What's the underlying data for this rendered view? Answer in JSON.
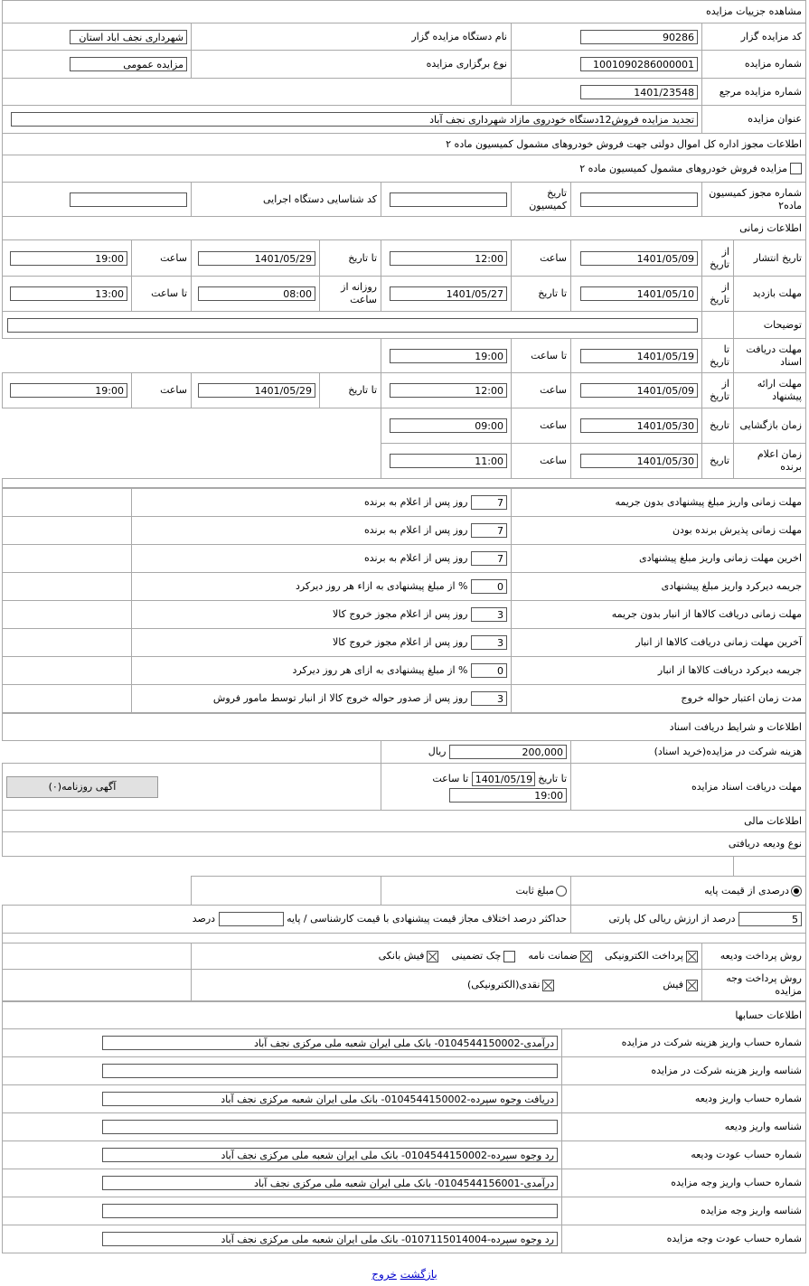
{
  "page_title": "مشاهده جزییات مزایده",
  "general": {
    "code_label": "کد مزایده گزار",
    "code_value": "90286",
    "org_label": "نام دستگاه مزایده گزار",
    "org_value": "شهرداری نجف اباد استان",
    "number_label": "شماره مزایده",
    "number_value": "1001090286000001",
    "type_label": "نوع برگزاری مزایده",
    "type_value": "مزایده عمومی",
    "ref_label": "شماره مزایده مرجع",
    "ref_value": "1401/23548",
    "title_label": "عنوان مزایده",
    "title_value": "تجدید مزایده فروش12دستگاه خودروی مازاد شهرداری نجف آباد"
  },
  "license": {
    "header": "اطلاعات مجوز اداره کل اموال دولتی جهت فروش خودروهای مشمول کمیسیون ماده ۲",
    "checkbox_label": "مزایده فروش خودروهای مشمول کمیسیون ماده ۲",
    "checkbox_checked": false,
    "permit_label": "شماره مجوز کمیسیون ماده۲",
    "permit_value": "",
    "date_label": "تاریخ کمیسیون",
    "date_value": "",
    "exec_label": "کد شناسایی دستگاه اجرایی",
    "exec_value": ""
  },
  "time": {
    "header": "اطلاعات زمانی",
    "publish": {
      "label": "تاریخ انتشار",
      "from": "از تاریخ",
      "from_date": "1401/05/09",
      "time1_label": "ساعت",
      "time1": "12:00",
      "to": "تا تاریخ",
      "to_date": "1401/05/29",
      "time2_label": "ساعت",
      "time2": "19:00"
    },
    "visit": {
      "label": "مهلت بازدید",
      "from": "از تاریخ",
      "from_date": "1401/05/10",
      "to": "تا تاریخ",
      "to_date": "1401/05/27",
      "daily_label": "روزانه از ساعت",
      "daily_from": "08:00",
      "to_time_label": "تا ساعت",
      "daily_to": "13:00"
    },
    "desc_label": "توضیحات",
    "desc_value": "",
    "docs": {
      "label": "مهلت دریافت اسناد",
      "to": "تا تاریخ",
      "date": "1401/05/19",
      "time_label": "تا ساعت",
      "time": "19:00"
    },
    "offer": {
      "label": "مهلت ارائه پیشنهاد",
      "from": "از تاریخ",
      "from_date": "1401/05/09",
      "time1_label": "ساعت",
      "time1": "12:00",
      "to": "تا تاریخ",
      "to_date": "1401/05/29",
      "time2_label": "ساعت",
      "time2": "19:00"
    },
    "opening": {
      "label": "زمان بازگشایی",
      "date_label": "تاریخ",
      "date": "1401/05/30",
      "time_label": "ساعت",
      "time": "09:00"
    },
    "winner": {
      "label": "زمان اعلام برنده",
      "date_label": "تاریخ",
      "date": "1401/05/30",
      "time_label": "ساعت",
      "time": "11:00"
    }
  },
  "deadlines": [
    {
      "label": "مهلت زمانی واریز مبلغ پیشنهادی بدون جریمه",
      "value": "7",
      "suffix": "روز پس از اعلام به برنده"
    },
    {
      "label": "مهلت زمانی پذیرش برنده بودن",
      "value": "7",
      "suffix": "روز پس از اعلام به برنده"
    },
    {
      "label": "اخرین مهلت زمانی واریز مبلغ پیشنهادی",
      "value": "7",
      "suffix": "روز پس از اعلام به برنده"
    },
    {
      "label": "جریمه دیرکرد واریز مبلغ پیشنهادی",
      "value": "0",
      "suffix": "% از مبلغ پیشنهادی به ازاء هر روز دیرکرد"
    },
    {
      "label": "مهلت زمانی دریافت کالاها از انبار بدون جریمه",
      "value": "3",
      "suffix": "روز پس از اعلام مجوز خروج کالا"
    },
    {
      "label": "آخرین مهلت زمانی دریافت کالاها از انبار",
      "value": "3",
      "suffix": "روز پس از اعلام مجوز خروج کالا"
    },
    {
      "label": "جریمه دیرکرد دریافت کالاها از انبار",
      "value": "0",
      "suffix": "% از مبلغ پیشنهادی به ازای هر روز دیرکرد"
    },
    {
      "label": "مدت زمان اعتبار حواله خروج",
      "value": "3",
      "suffix": "روز پس از صدور حواله خروج کالا از انبار توسط مامور فروش"
    }
  ],
  "docs": {
    "header": "اطلاعات و شرایط دریافت اسناد",
    "cost_label": "هزینه شرکت در مزایده(خرید اسناد)",
    "cost_value": "200,000",
    "cost_unit": "ریال",
    "deadline_label": "مهلت دریافت اسناد مزایده",
    "to_date_label": "تا تاریخ",
    "to_date": "1401/05/19",
    "to_time_label": "تا ساعت",
    "to_time": "19:00",
    "newspaper_button": "آگهی روزنامه(۰)"
  },
  "finance": {
    "header": "اطلاعات مالی",
    "deposit_type_header": "نوع ودیعه دریافتی",
    "radio_percent": "درصدی از قیمت پایه",
    "radio_fixed": "مبلغ ثابت",
    "selected": "percent",
    "percent_value": "5",
    "percent_suffix": "درصد از ارزش ریالی کل پارتی",
    "max_diff_label": "حداکثر درصد اختلاف مجاز قیمت پیشنهادی با قیمت کارشناسی / پایه",
    "max_diff_value": "",
    "max_diff_unit": "درصد",
    "deposit_method_label": "روش پرداخت ودیعه",
    "deposit_methods": [
      {
        "label": "پرداخت الکترونیکی",
        "checked": true
      },
      {
        "label": "ضمانت نامه",
        "checked": true
      },
      {
        "label": "چک تضمینی",
        "checked": false
      },
      {
        "label": "فیش بانکی",
        "checked": true
      }
    ],
    "payment_method_label": "روش پرداخت وجه مزایده",
    "payment_methods": [
      {
        "label": "فیش",
        "checked": true
      },
      {
        "label": "نقدی(الکترونیکی)",
        "checked": true
      }
    ]
  },
  "accounts": {
    "header": "اطلاعات حسابها",
    "rows": [
      {
        "label": "شماره حساب واریز هزینه شرکت در مزایده",
        "value": "درآمدی-0104544150002- بانک ملی ایران شعبه ملی مرکزی نجف آباد"
      },
      {
        "label": "شناسه واریز هزینه شرکت در مزایده",
        "value": ""
      },
      {
        "label": "شماره حساب واریز ودیعه",
        "value": "دریافت وجوه سپرده-0104544150002- بانک ملی ایران شعبه مرکزی نجف آباد"
      },
      {
        "label": "شناسه واریز ودیعه",
        "value": ""
      },
      {
        "label": "شماره حساب عودت ودیعه",
        "value": "رد وجوه سپرده-0104544150002- بانک ملی ایران شعبه ملی مرکزی نجف آباد"
      },
      {
        "label": "شماره حساب واریز وجه مزایده",
        "value": "درآمدی-0104544156001- بانک ملی ایران شعبه ملی مرکزی نجف آباد"
      },
      {
        "label": "شناسه واریز وجه مزایده",
        "value": ""
      },
      {
        "label": "شماره حساب عودت وجه مزایده",
        "value": "رد وجوه سپرده-0107115014004- بانک ملی ایران شعبه ملی مرکزی نجف آباد"
      }
    ]
  },
  "footer": {
    "back": "بازگشت",
    "exit": "خروج"
  }
}
